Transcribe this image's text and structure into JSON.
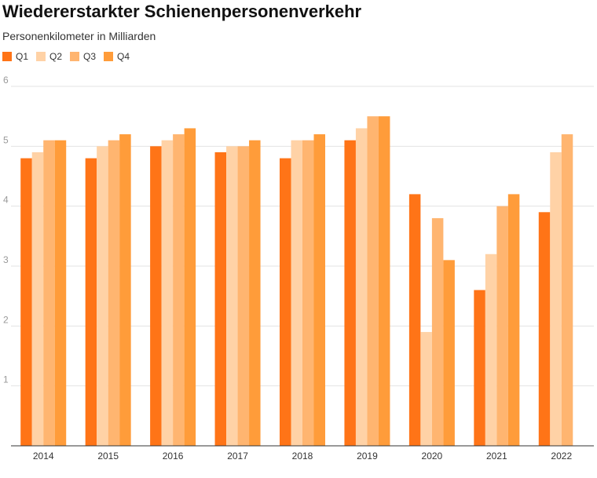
{
  "chart_data": {
    "type": "bar",
    "title": "Wiedererstarkter Schienenpersonenverkehr",
    "subtitle": "Personenkilometer in Milliarden",
    "categories": [
      "2014",
      "2015",
      "2016",
      "2017",
      "2018",
      "2019",
      "2020",
      "2021",
      "2022"
    ],
    "series": [
      {
        "name": "Q1",
        "color": "#ff7417",
        "values": [
          4.8,
          4.8,
          5.0,
          4.9,
          4.8,
          5.1,
          4.2,
          2.6,
          3.9
        ]
      },
      {
        "name": "Q2",
        "color": "#ffd2a6",
        "values": [
          4.9,
          5.0,
          5.1,
          5.0,
          5.1,
          5.3,
          1.9,
          3.2,
          4.9
        ]
      },
      {
        "name": "Q3",
        "color": "#ffb570",
        "values": [
          5.1,
          5.1,
          5.2,
          5.0,
          5.1,
          5.5,
          3.8,
          4.0,
          5.2
        ]
      },
      {
        "name": "Q4",
        "color": "#ff9c3a",
        "values": [
          5.1,
          5.2,
          5.3,
          5.1,
          5.2,
          5.5,
          3.1,
          4.2,
          null
        ]
      }
    ],
    "yticks": [
      "1",
      "2",
      "3",
      "4",
      "5",
      "6"
    ],
    "ylim": [
      0,
      6
    ],
    "grid": true,
    "legend_position": "top-left"
  }
}
